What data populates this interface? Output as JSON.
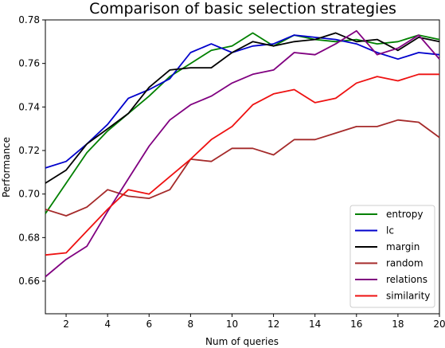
{
  "chart_data": {
    "type": "line",
    "title": "Comparison of basic selection strategies",
    "xlabel": "Num of queries",
    "ylabel": "Performance",
    "xlim": [
      1,
      20
    ],
    "ylim": [
      0.645,
      0.78
    ],
    "xticks": [
      2,
      4,
      6,
      8,
      10,
      12,
      14,
      16,
      18,
      20
    ],
    "yticks": [
      0.66,
      0.68,
      0.7,
      0.72,
      0.74,
      0.76,
      0.78
    ],
    "ytick_labels": [
      "0.66",
      "0.68",
      "0.70",
      "0.72",
      "0.74",
      "0.76",
      "0.78"
    ],
    "grid": false,
    "legend_position": "lower-right",
    "x": [
      1,
      2,
      3,
      4,
      5,
      6,
      7,
      8,
      9,
      10,
      11,
      12,
      13,
      14,
      15,
      16,
      17,
      18,
      19,
      20
    ],
    "series": [
      {
        "name": "entropy",
        "color": "#008000",
        "values": [
          0.691,
          0.705,
          0.719,
          0.729,
          0.737,
          0.745,
          0.754,
          0.76,
          0.766,
          0.768,
          0.774,
          0.768,
          0.773,
          0.771,
          0.77,
          0.771,
          0.769,
          0.77,
          0.773,
          0.771
        ]
      },
      {
        "name": "lc",
        "color": "#0000cc",
        "values": [
          0.712,
          0.715,
          0.723,
          0.732,
          0.744,
          0.748,
          0.753,
          0.765,
          0.769,
          0.765,
          0.768,
          0.769,
          0.773,
          0.772,
          0.771,
          0.769,
          0.765,
          0.762,
          0.765,
          0.764
        ]
      },
      {
        "name": "margin",
        "color": "#000000",
        "values": [
          0.705,
          0.711,
          0.723,
          0.73,
          0.737,
          0.749,
          0.757,
          0.758,
          0.758,
          0.765,
          0.77,
          0.768,
          0.77,
          0.771,
          0.774,
          0.77,
          0.771,
          0.766,
          0.772,
          0.77
        ]
      },
      {
        "name": "random",
        "color": "#a52a2a",
        "values": [
          0.693,
          0.69,
          0.694,
          0.702,
          0.699,
          0.698,
          0.702,
          0.716,
          0.715,
          0.721,
          0.721,
          0.718,
          0.725,
          0.725,
          0.728,
          0.731,
          0.731,
          0.734,
          0.733,
          0.726
        ]
      },
      {
        "name": "relations",
        "color": "#800080",
        "values": [
          0.662,
          0.67,
          0.676,
          0.692,
          0.707,
          0.722,
          0.734,
          0.741,
          0.745,
          0.751,
          0.755,
          0.757,
          0.765,
          0.764,
          0.769,
          0.775,
          0.764,
          0.767,
          0.773,
          0.762
        ]
      },
      {
        "name": "similarity",
        "color": "#ee1111",
        "values": [
          0.672,
          0.673,
          0.683,
          0.693,
          0.702,
          0.7,
          0.708,
          0.716,
          0.725,
          0.731,
          0.741,
          0.746,
          0.748,
          0.742,
          0.744,
          0.751,
          0.754,
          0.752,
          0.755,
          0.755
        ]
      }
    ]
  }
}
